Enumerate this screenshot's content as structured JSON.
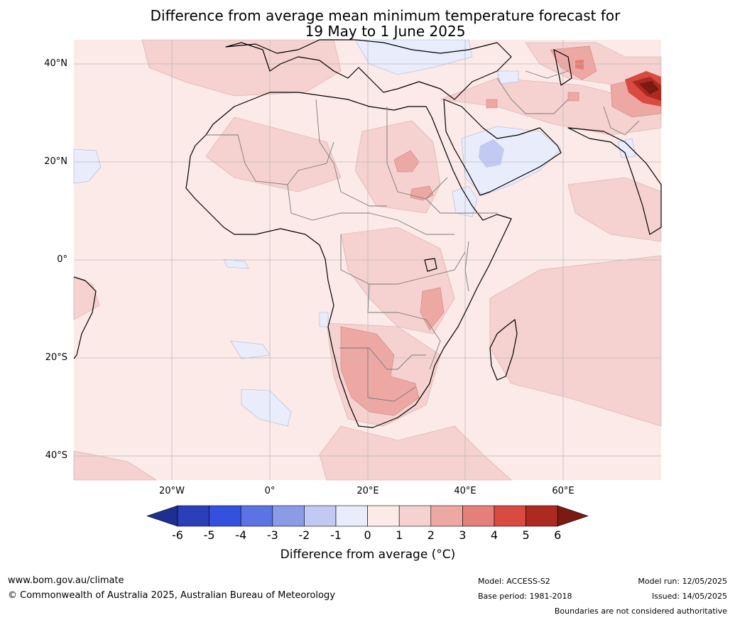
{
  "title_line1": "Difference from average mean minimum temperature forecast for",
  "title_line2": "19 May to 1 June 2025",
  "lat_labels": [
    "40°N",
    "20°N",
    "0°",
    "20°S",
    "40°S"
  ],
  "lon_labels": [
    "20°W",
    "0°",
    "20°E",
    "40°E",
    "60°E"
  ],
  "colorbar": {
    "ticks": [
      "-6",
      "-5",
      "-4",
      "-3",
      "-2",
      "-1",
      "0",
      "1",
      "2",
      "3",
      "4",
      "5",
      "6"
    ],
    "colors": [
      "#1e2f91",
      "#2b3fb8",
      "#3450df",
      "#5b73e3",
      "#8a9be8",
      "#c2c9f3",
      "#e8ecfb",
      "#fbeae8",
      "#f5d2cf",
      "#eda8a4",
      "#e48079",
      "#d94a40",
      "#ad2a22",
      "#7a1a12"
    ],
    "label": "Difference from average (°C)"
  },
  "footer": {
    "url": "www.bom.gov.au/climate",
    "copyright": "© Commonwealth of Australia 2025, Australian Bureau of Meteorology",
    "model": "Model: ACCESS-S2",
    "base_period": "Base period: 1981-2018",
    "model_run": "Model run: 12/05/2025",
    "issued": "Issued: 14/05/2025",
    "disclaimer": "Boundaries are not considered authoritative"
  }
}
